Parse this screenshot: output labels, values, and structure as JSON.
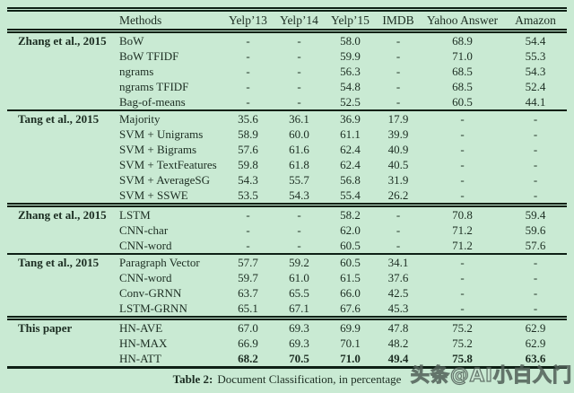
{
  "page": {
    "background_color": "#c9ead3",
    "ink_color": "#0e2015"
  },
  "table": {
    "columns": [
      "",
      "Methods",
      "Yelp’13",
      "Yelp’14",
      "Yelp’15",
      "IMDB",
      "Yahoo Answer",
      "Amazon"
    ],
    "groups": [
      {
        "label": "Zhang et al., 2015",
        "rule_above": "none",
        "rows": [
          {
            "method": "BoW",
            "values": [
              "-",
              "-",
              "58.0",
              "-",
              "68.9",
              "54.4"
            ],
            "bold": false
          },
          {
            "method": "BoW TFIDF",
            "values": [
              "-",
              "-",
              "59.9",
              "-",
              "71.0",
              "55.3"
            ],
            "bold": false
          },
          {
            "method": "ngrams",
            "values": [
              "-",
              "-",
              "56.3",
              "-",
              "68.5",
              "54.3"
            ],
            "bold": false
          },
          {
            "method": "ngrams TFIDF",
            "values": [
              "-",
              "-",
              "54.8",
              "-",
              "68.5",
              "52.4"
            ],
            "bold": false
          },
          {
            "method": "Bag-of-means",
            "values": [
              "-",
              "-",
              "52.5",
              "-",
              "60.5",
              "44.1"
            ],
            "bold": false
          }
        ]
      },
      {
        "label": "Tang et al., 2015",
        "rule_above": "single",
        "rows": [
          {
            "method": "Majority",
            "values": [
              "35.6",
              "36.1",
              "36.9",
              "17.9",
              "-",
              "-"
            ],
            "bold": false
          },
          {
            "method": "SVM + Unigrams",
            "values": [
              "58.9",
              "60.0",
              "61.1",
              "39.9",
              "-",
              "-"
            ],
            "bold": false
          },
          {
            "method": "SVM + Bigrams",
            "values": [
              "57.6",
              "61.6",
              "62.4",
              "40.9",
              "-",
              "-"
            ],
            "bold": false
          },
          {
            "method": "SVM + TextFeatures",
            "values": [
              "59.8",
              "61.8",
              "62.4",
              "40.5",
              "-",
              "-"
            ],
            "bold": false
          },
          {
            "method": "SVM + AverageSG",
            "values": [
              "54.3",
              "55.7",
              "56.8",
              "31.9",
              "-",
              "-"
            ],
            "bold": false
          },
          {
            "method": "SVM + SSWE",
            "values": [
              "53.5",
              "54.3",
              "55.4",
              "26.2",
              "-",
              "-"
            ],
            "bold": false
          }
        ]
      },
      {
        "label": "Zhang et al., 2015",
        "rule_above": "double",
        "rows": [
          {
            "method": "LSTM",
            "values": [
              "-",
              "-",
              "58.2",
              "-",
              "70.8",
              "59.4"
            ],
            "bold": false
          },
          {
            "method": "CNN-char",
            "values": [
              "-",
              "-",
              "62.0",
              "-",
              "71.2",
              "59.6"
            ],
            "bold": false
          },
          {
            "method": "CNN-word",
            "values": [
              "-",
              "-",
              "60.5",
              "-",
              "71.2",
              "57.6"
            ],
            "bold": false
          }
        ]
      },
      {
        "label": "Tang et al., 2015",
        "rule_above": "single",
        "rows": [
          {
            "method": "Paragraph Vector",
            "values": [
              "57.7",
              "59.2",
              "60.5",
              "34.1",
              "-",
              "-"
            ],
            "bold": false
          },
          {
            "method": "CNN-word",
            "values": [
              "59.7",
              "61.0",
              "61.5",
              "37.6",
              "-",
              "-"
            ],
            "bold": false
          },
          {
            "method": "Conv-GRNN",
            "values": [
              "63.7",
              "65.5",
              "66.0",
              "42.5",
              "-",
              "-"
            ],
            "bold": false
          },
          {
            "method": "LSTM-GRNN",
            "values": [
              "65.1",
              "67.1",
              "67.6",
              "45.3",
              "-",
              "-"
            ],
            "bold": false
          }
        ]
      },
      {
        "label": "This paper",
        "rule_above": "double",
        "rows": [
          {
            "method": "HN-AVE",
            "values": [
              "67.0",
              "69.3",
              "69.9",
              "47.8",
              "75.2",
              "62.9"
            ],
            "bold": false
          },
          {
            "method": "HN-MAX",
            "values": [
              "66.9",
              "69.3",
              "70.1",
              "48.2",
              "75.2",
              "62.9"
            ],
            "bold": false
          },
          {
            "method": "HN-ATT",
            "values": [
              "68.2",
              "70.5",
              "71.0",
              "49.4",
              "75.8",
              "63.6"
            ],
            "bold": true
          }
        ]
      }
    ]
  },
  "caption": {
    "label": "Table 2:",
    "text": "Document Classification, in percentage"
  },
  "watermark": {
    "text": "头条@AI小白入门"
  }
}
